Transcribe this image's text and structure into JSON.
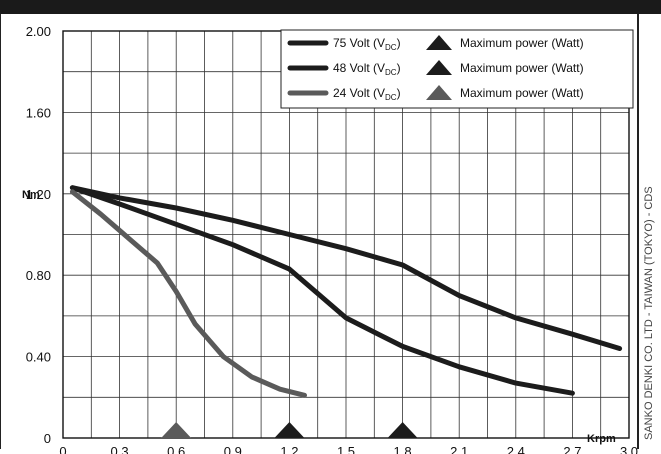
{
  "chart_data": {
    "type": "line",
    "ylabel": "Nm",
    "xlabel": "Krpm",
    "xlim": [
      0,
      3.0
    ],
    "ylim": [
      0,
      2.0
    ],
    "x_ticks": [
      "0",
      "0.3",
      "0.6",
      "0.9",
      "1.2",
      "1.5",
      "1.8",
      "2.1",
      "2.4",
      "2.7",
      "3.0"
    ],
    "y_ticks": [
      "0",
      "0.40",
      "0.80",
      "1.20",
      "1.60",
      "2.00"
    ],
    "grid": true,
    "legend_position": "top-right",
    "series": [
      {
        "name": "75 Volt (V",
        "sub": "DC",
        "suffix": ")",
        "power_label": "Maximum power (Watt)",
        "color": "#1c1c1c",
        "x": [
          0.05,
          0.3,
          0.6,
          0.9,
          1.2,
          1.5,
          1.8,
          2.1,
          2.4,
          2.7,
          2.95
        ],
        "y": [
          1.23,
          1.18,
          1.13,
          1.07,
          1.0,
          0.93,
          0.85,
          0.7,
          0.59,
          0.51,
          0.44
        ],
        "max_power_marker_x": 1.8
      },
      {
        "name": "48 Volt (V",
        "sub": "DC",
        "suffix": ")",
        "power_label": "Maximum power (Watt)",
        "color": "#1c1c1c",
        "x": [
          0.05,
          0.3,
          0.6,
          0.9,
          1.2,
          1.5,
          1.8,
          2.1,
          2.4,
          2.7
        ],
        "y": [
          1.23,
          1.15,
          1.05,
          0.95,
          0.83,
          0.59,
          0.45,
          0.35,
          0.27,
          0.22
        ],
        "max_power_marker_x": 1.2
      },
      {
        "name": "24 Volt (V",
        "sub": "DC",
        "suffix": ")",
        "power_label": "Maximum power (Watt)",
        "color": "#5a5a5a",
        "x": [
          0.05,
          0.2,
          0.35,
          0.5,
          0.6,
          0.7,
          0.85,
          1.0,
          1.15,
          1.28
        ],
        "y": [
          1.21,
          1.1,
          0.98,
          0.86,
          0.72,
          0.56,
          0.4,
          0.3,
          0.24,
          0.21
        ],
        "max_power_marker_x": 0.6
      }
    ]
  },
  "side_text": "SANKO DENKI CO. LTD - TAIWAN (TOKYO) - CDS"
}
